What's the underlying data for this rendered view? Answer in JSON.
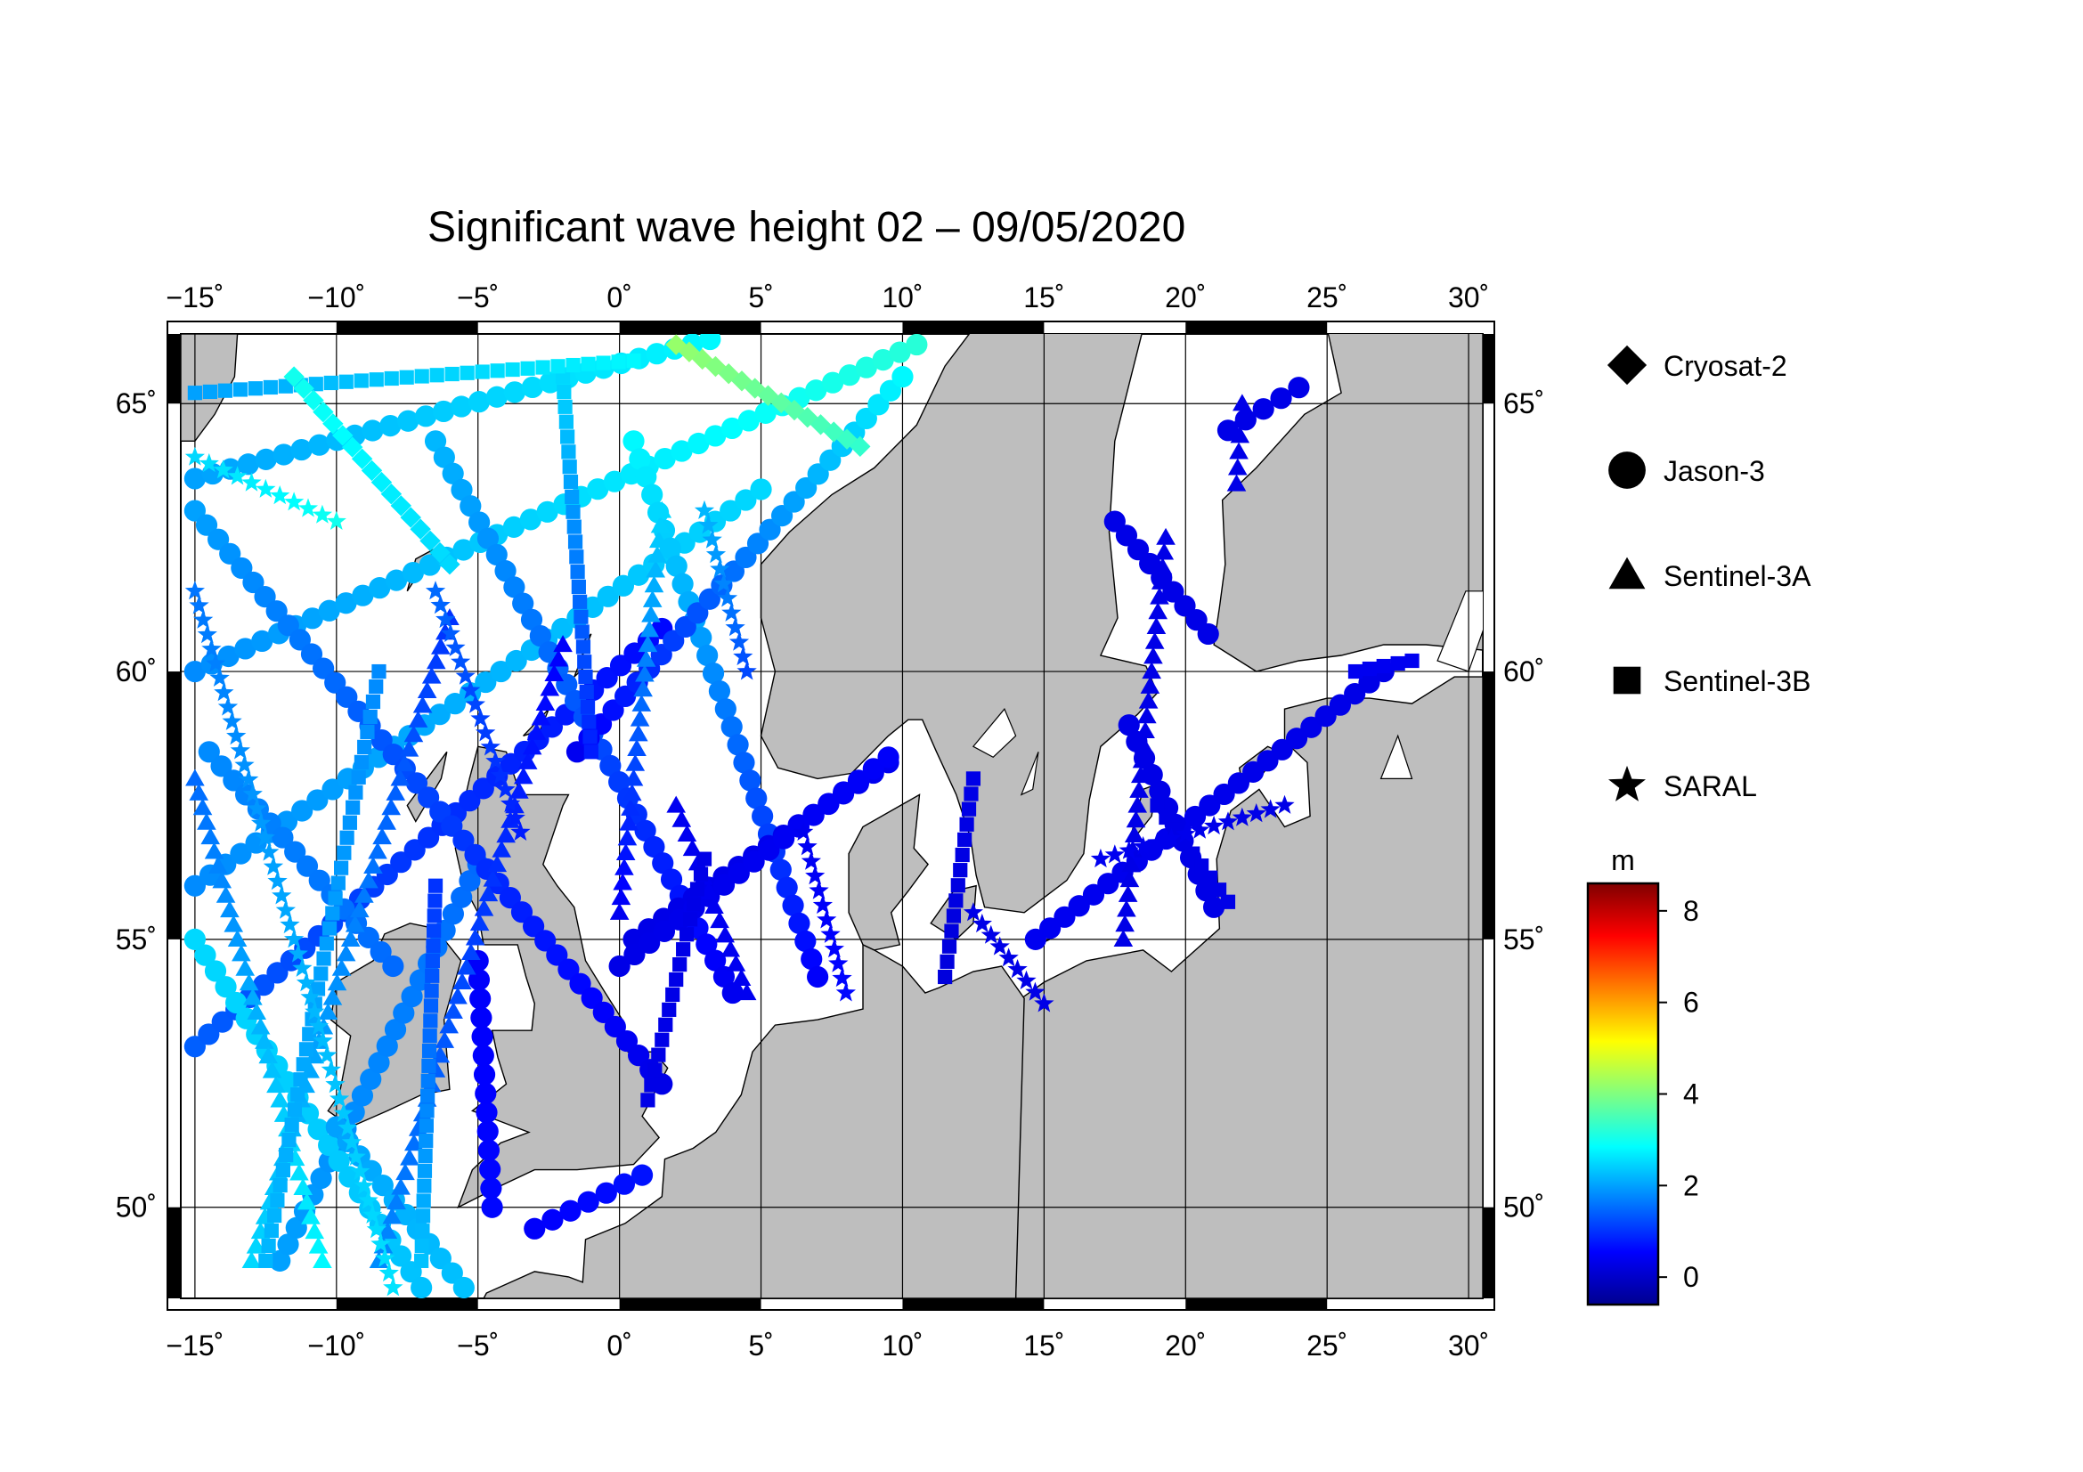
{
  "title": "Significant wave height 02 – 09/05/2020",
  "map": {
    "lon_range": [
      -15.5,
      30.5
    ],
    "lat_range": [
      48.3,
      66.3
    ],
    "lon_ticks": [
      -15,
      -10,
      -5,
      0,
      5,
      10,
      15,
      20,
      25,
      30
    ],
    "lon_tick_labels": [
      "−15˚",
      "−10˚",
      "−5˚",
      "0˚",
      "5˚",
      "10˚",
      "15˚",
      "20˚",
      "25˚",
      "30˚"
    ],
    "lat_ticks": [
      50,
      55,
      60,
      65
    ],
    "lat_tick_labels": [
      "50˚",
      "55˚",
      "60˚",
      "65˚"
    ],
    "land_color": "#bebebe",
    "sea_color": "#ffffff"
  },
  "legend": {
    "items": [
      {
        "label": "Cryosat-2",
        "symbol": "diamond"
      },
      {
        "label": "Jason-3",
        "symbol": "circle"
      },
      {
        "label": "Sentinel-3A",
        "symbol": "triangle"
      },
      {
        "label": "Sentinel-3B",
        "symbol": "square"
      },
      {
        "label": "SARAL",
        "symbol": "star"
      }
    ]
  },
  "colorbar": {
    "unit": "m",
    "min": -0.6,
    "max": 8.6,
    "ticks": [
      0,
      2,
      4,
      6,
      8
    ],
    "tick_labels": [
      "0",
      "2",
      "4",
      "6",
      "8"
    ],
    "colors": [
      "#00008f",
      "#0000ff",
      "#0080ff",
      "#00ffff",
      "#80ff80",
      "#ffff00",
      "#ff8000",
      "#ff0000",
      "#800000"
    ]
  },
  "chart_data": {
    "type": "scatter",
    "xlabel": "",
    "ylabel": "",
    "xlim": [
      -15.5,
      30.5
    ],
    "ylim": [
      48.3,
      66.3
    ],
    "value_label": "m",
    "tracks": [
      {
        "satellite": "Jason-3",
        "symbol": "circle",
        "from": [
          -15,
          63.6
        ],
        "to": [
          3.2,
          66.2
        ],
        "hs_start": 2.0,
        "hs_end": 2.8
      },
      {
        "satellite": "Jason-3",
        "symbol": "circle",
        "from": [
          -15,
          60.0
        ],
        "to": [
          10.5,
          66.1
        ],
        "hs_start": 1.8,
        "hs_end": 3.2
      },
      {
        "satellite": "Jason-3",
        "symbol": "circle",
        "from": [
          -15,
          56.0
        ],
        "to": [
          5.0,
          63.4
        ],
        "hs_start": 1.8,
        "hs_end": 2.5
      },
      {
        "satellite": "Jason-3",
        "symbol": "circle",
        "from": [
          -15,
          53.0
        ],
        "to": [
          1.5,
          60.8
        ],
        "hs_start": 1.4,
        "hs_end": 0.6
      },
      {
        "satellite": "Jason-3",
        "symbol": "circle",
        "from": [
          -12,
          49.0
        ],
        "to": [
          -5.0,
          56.4
        ],
        "hs_start": 2.0,
        "hs_end": 1.5
      },
      {
        "satellite": "Jason-3",
        "symbol": "circle",
        "from": [
          -15,
          63.0
        ],
        "to": [
          1.5,
          52.3
        ],
        "hs_start": 2.0,
        "hs_end": 0.3
      },
      {
        "satellite": "Jason-3",
        "symbol": "circle",
        "from": [
          -6.5,
          64.3
        ],
        "to": [
          4.0,
          54.0
        ],
        "hs_start": 2.2,
        "hs_end": 0.4
      },
      {
        "satellite": "Jason-3",
        "symbol": "circle",
        "from": [
          0.5,
          64.3
        ],
        "to": [
          7.0,
          54.3
        ],
        "hs_start": 2.8,
        "hs_end": 0.5
      },
      {
        "satellite": "Jason-3",
        "symbol": "circle",
        "from": [
          -1.5,
          58.5
        ],
        "to": [
          10.0,
          65.5
        ],
        "hs_start": 0.4,
        "hs_end": 2.8
      },
      {
        "satellite": "Jason-3",
        "symbol": "circle",
        "from": [
          0.5,
          55.0
        ],
        "to": [
          9.5,
          58.3
        ],
        "hs_start": 0.3,
        "hs_end": 0.4
      },
      {
        "satellite": "Jason-3",
        "symbol": "circle",
        "from": [
          0.0,
          54.5
        ],
        "to": [
          9.5,
          58.4
        ],
        "hs_start": 0.3,
        "hs_end": 0.5
      },
      {
        "satellite": "Jason-3",
        "symbol": "circle",
        "from": [
          14.7,
          55.0
        ],
        "to": [
          27.0,
          60.0
        ],
        "hs_start": 0.4,
        "hs_end": 0.3
      },
      {
        "satellite": "Jason-3",
        "symbol": "circle",
        "from": [
          18.0,
          59.0
        ],
        "to": [
          21.0,
          55.6
        ],
        "hs_start": 0.3,
        "hs_end": 0.3
      },
      {
        "satellite": "Jason-3",
        "symbol": "circle",
        "from": [
          17.5,
          62.8
        ],
        "to": [
          20.8,
          60.7
        ],
        "hs_start": 0.3,
        "hs_end": 0.3
      },
      {
        "satellite": "Jason-3",
        "symbol": "circle",
        "from": [
          21.5,
          64.5
        ],
        "to": [
          24.0,
          65.3
        ],
        "hs_start": 0.3,
        "hs_end": 0.3
      },
      {
        "satellite": "Jason-3",
        "symbol": "circle",
        "from": [
          -15,
          55.0
        ],
        "to": [
          -7.0,
          48.5
        ],
        "hs_start": 2.5,
        "hs_end": 2.3
      },
      {
        "satellite": "Jason-3",
        "symbol": "circle",
        "from": [
          -10,
          51.5
        ],
        "to": [
          -5.5,
          48.5
        ],
        "hs_start": 2.0,
        "hs_end": 2.3
      },
      {
        "satellite": "Jason-3",
        "symbol": "circle",
        "from": [
          -14.5,
          58.5
        ],
        "to": [
          -8.0,
          54.5
        ],
        "hs_start": 1.8,
        "hs_end": 1.5
      },
      {
        "satellite": "Jason-3",
        "symbol": "circle",
        "from": [
          -4.5,
          50.0
        ],
        "to": [
          -5.0,
          54.6
        ],
        "hs_start": 0.6,
        "hs_end": 0.5
      },
      {
        "satellite": "Jason-3",
        "symbol": "circle",
        "from": [
          -3.0,
          49.6
        ],
        "to": [
          0.8,
          50.6
        ],
        "hs_start": 0.5,
        "hs_end": 0.7
      },
      {
        "satellite": "Sentinel-3A",
        "symbol": "triangle",
        "from": [
          -13.0,
          49.0
        ],
        "to": [
          -6.0,
          61.0
        ],
        "hs_start": 2.5,
        "hs_end": 1.0
      },
      {
        "satellite": "Sentinel-3A",
        "symbol": "triangle",
        "from": [
          -8.5,
          49.0
        ],
        "to": [
          -2.0,
          60.5
        ],
        "hs_start": 1.8,
        "hs_end": 0.5
      },
      {
        "satellite": "Sentinel-3A",
        "symbol": "triangle",
        "from": [
          -15.0,
          58.0
        ],
        "to": [
          -10.5,
          49.0
        ],
        "hs_start": 1.5,
        "hs_end": 2.8
      },
      {
        "satellite": "Sentinel-3A",
        "symbol": "triangle",
        "from": [
          0.0,
          55.5
        ],
        "to": [
          1.5,
          63.0
        ],
        "hs_start": 0.4,
        "hs_end": 2.5
      },
      {
        "satellite": "Sentinel-3A",
        "symbol": "triangle",
        "from": [
          17.8,
          55.0
        ],
        "to": [
          19.3,
          62.5
        ],
        "hs_start": 0.3,
        "hs_end": 0.3
      },
      {
        "satellite": "Sentinel-3A",
        "symbol": "triangle",
        "from": [
          2.0,
          57.5
        ],
        "to": [
          4.5,
          54.0
        ],
        "hs_start": 0.4,
        "hs_end": 0.4
      },
      {
        "satellite": "Sentinel-3A",
        "symbol": "triangle",
        "from": [
          22.0,
          65.0
        ],
        "to": [
          21.8,
          63.5
        ],
        "hs_start": 0.3,
        "hs_end": 0.3
      },
      {
        "satellite": "Sentinel-3B",
        "symbol": "square",
        "from": [
          -12.5,
          49.0
        ],
        "to": [
          -8.5,
          60.0
        ],
        "hs_start": 2.2,
        "hs_end": 1.8
      },
      {
        "satellite": "Sentinel-3B",
        "symbol": "square",
        "from": [
          -7.0,
          49.0
        ],
        "to": [
          -6.5,
          56.0
        ],
        "hs_start": 2.3,
        "hs_end": 1.0
      },
      {
        "satellite": "Sentinel-3B",
        "symbol": "square",
        "from": [
          -2.0,
          65.5
        ],
        "to": [
          -1.0,
          58.5
        ],
        "hs_start": 2.5,
        "hs_end": 0.8
      },
      {
        "satellite": "Sentinel-3B",
        "symbol": "square",
        "from": [
          1.0,
          52.0
        ],
        "to": [
          3.0,
          56.5
        ],
        "hs_start": 0.3,
        "hs_end": 0.3
      },
      {
        "satellite": "Sentinel-3B",
        "symbol": "square",
        "from": [
          11.5,
          54.3
        ],
        "to": [
          12.5,
          58.0
        ],
        "hs_start": 0.2,
        "hs_end": 0.3
      },
      {
        "satellite": "Sentinel-3B",
        "symbol": "square",
        "from": [
          19.0,
          57.5
        ],
        "to": [
          21.5,
          55.7
        ],
        "hs_start": 0.3,
        "hs_end": 0.3
      },
      {
        "satellite": "Sentinel-3B",
        "symbol": "square",
        "from": [
          26.0,
          60.0
        ],
        "to": [
          28.0,
          60.2
        ],
        "hs_start": 0.4,
        "hs_end": 0.4
      },
      {
        "satellite": "Sentinel-3B",
        "symbol": "square",
        "from": [
          -15.0,
          65.2
        ],
        "to": [
          0.5,
          65.8
        ],
        "hs_start": 2.0,
        "hs_end": 2.8
      },
      {
        "satellite": "SARAL",
        "symbol": "star",
        "from": [
          -15.0,
          61.5
        ],
        "to": [
          -8.0,
          48.5
        ],
        "hs_start": 1.6,
        "hs_end": 2.6
      },
      {
        "satellite": "SARAL",
        "symbol": "star",
        "from": [
          -6.5,
          61.5
        ],
        "to": [
          -3.5,
          57.0
        ],
        "hs_start": 1.5,
        "hs_end": 0.8
      },
      {
        "satellite": "SARAL",
        "symbol": "star",
        "from": [
          3.0,
          63.0
        ],
        "to": [
          4.5,
          60.0
        ],
        "hs_start": 2.2,
        "hs_end": 1.2
      },
      {
        "satellite": "SARAL",
        "symbol": "star",
        "from": [
          6.5,
          57.0
        ],
        "to": [
          8.0,
          54.0
        ],
        "hs_start": 0.4,
        "hs_end": 0.6
      },
      {
        "satellite": "SARAL",
        "symbol": "star",
        "from": [
          17.0,
          56.5
        ],
        "to": [
          23.5,
          57.5
        ],
        "hs_start": 0.4,
        "hs_end": 0.3
      },
      {
        "satellite": "SARAL",
        "symbol": "star",
        "from": [
          12.5,
          55.5
        ],
        "to": [
          15.0,
          53.8
        ],
        "hs_start": 0.3,
        "hs_end": 0.3
      },
      {
        "satellite": "SARAL",
        "symbol": "star",
        "from": [
          -15.0,
          64.0
        ],
        "to": [
          -10.0,
          62.8
        ],
        "hs_start": 2.5,
        "hs_end": 3.0
      },
      {
        "satellite": "Cryosat-2",
        "symbol": "diamond",
        "from": [
          -11.5,
          65.5
        ],
        "to": [
          -6.0,
          62.0
        ],
        "hs_start": 3.0,
        "hs_end": 2.5
      },
      {
        "satellite": "Cryosat-2",
        "symbol": "diamond",
        "from": [
          2.0,
          66.1
        ],
        "to": [
          8.5,
          64.2
        ],
        "hs_start": 4.2,
        "hs_end": 3.3
      }
    ]
  }
}
